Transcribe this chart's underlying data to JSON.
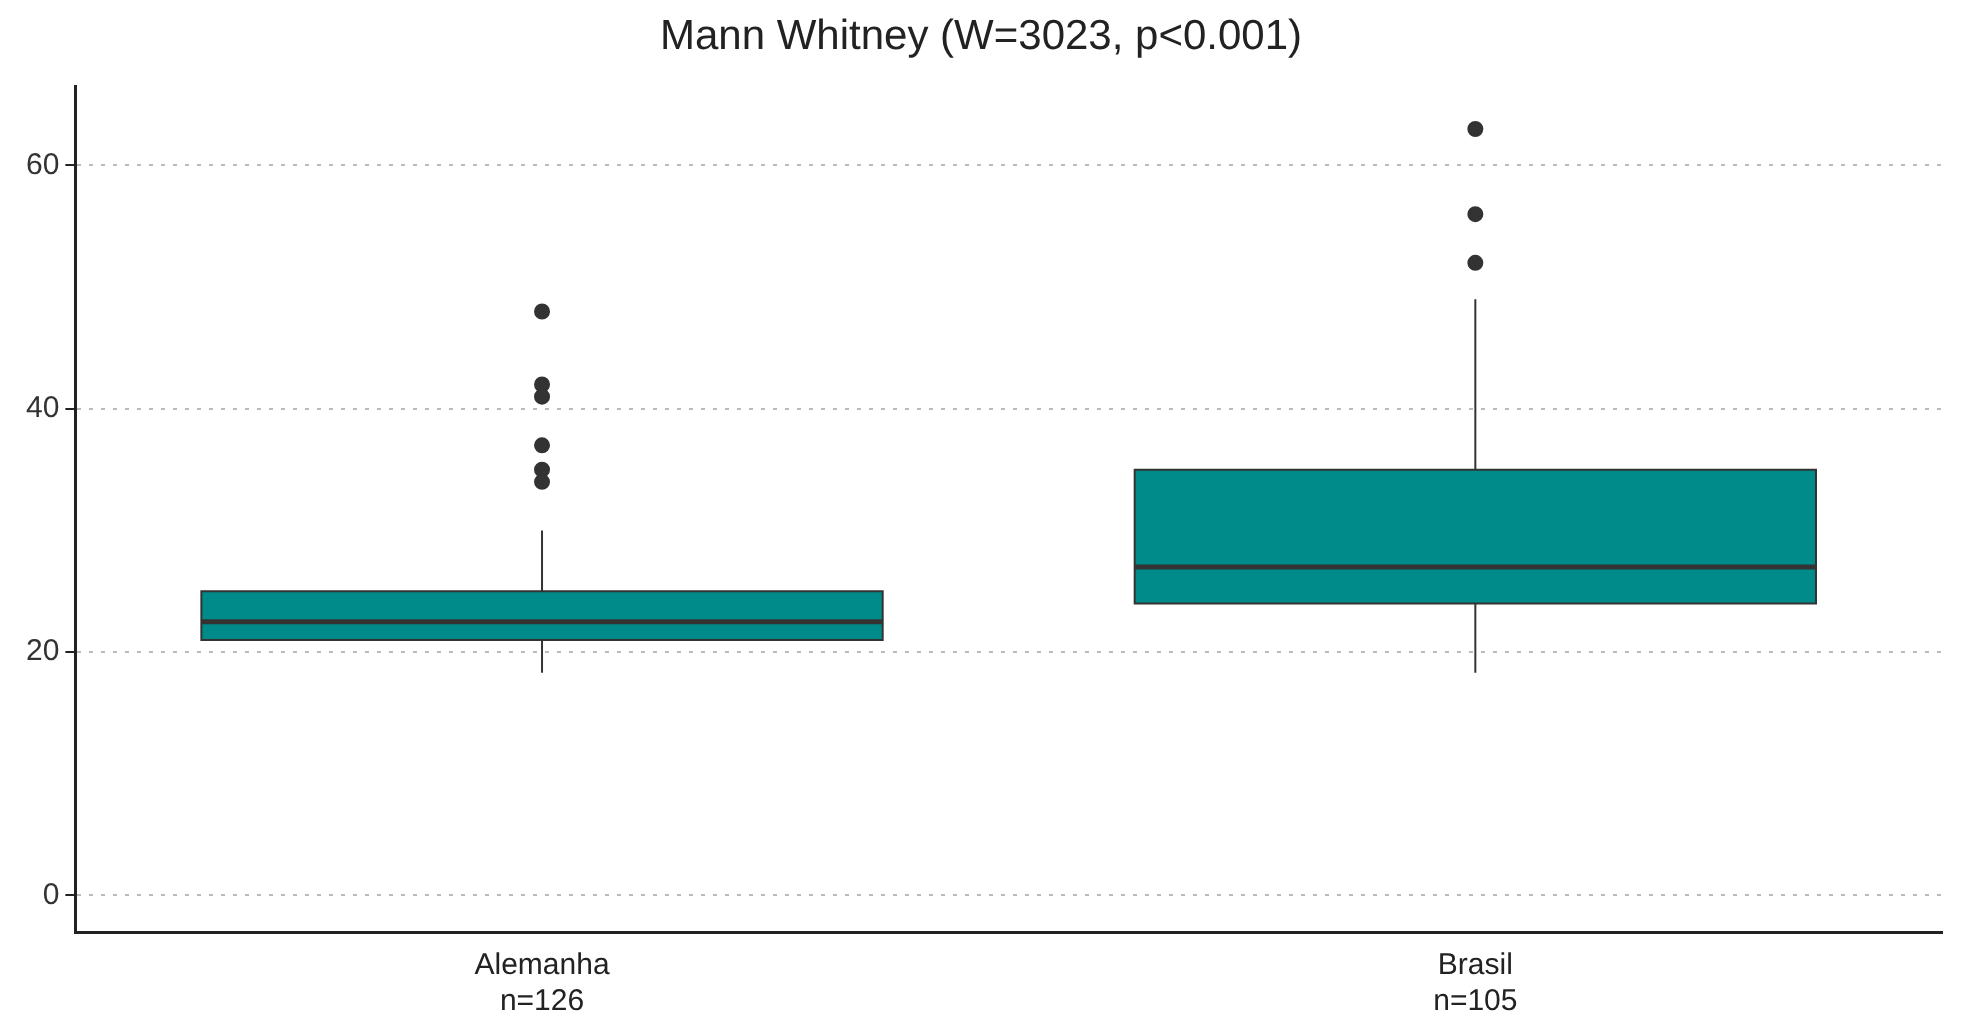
{
  "chart_data": {
    "type": "box",
    "title": "Mann Whitney (W=3023, p<0.001)",
    "categories": [
      "Alemanha\nn=126",
      "Brasil\nn=105"
    ],
    "boxes": [
      {
        "low": 18.3,
        "q1": 21,
        "median": 22.5,
        "q3": 25,
        "high": 30,
        "outliers": [
          34,
          35,
          37,
          41,
          42,
          48
        ]
      },
      {
        "low": 18.3,
        "q1": 24,
        "median": 27,
        "q3": 35,
        "high": 49,
        "outliers": [
          52,
          56,
          63
        ]
      }
    ],
    "color": "#008b8b",
    "ylim": [
      -3,
      66.5
    ],
    "yticks": [
      0,
      20,
      40,
      60
    ],
    "grid": "y",
    "legend": false
  }
}
